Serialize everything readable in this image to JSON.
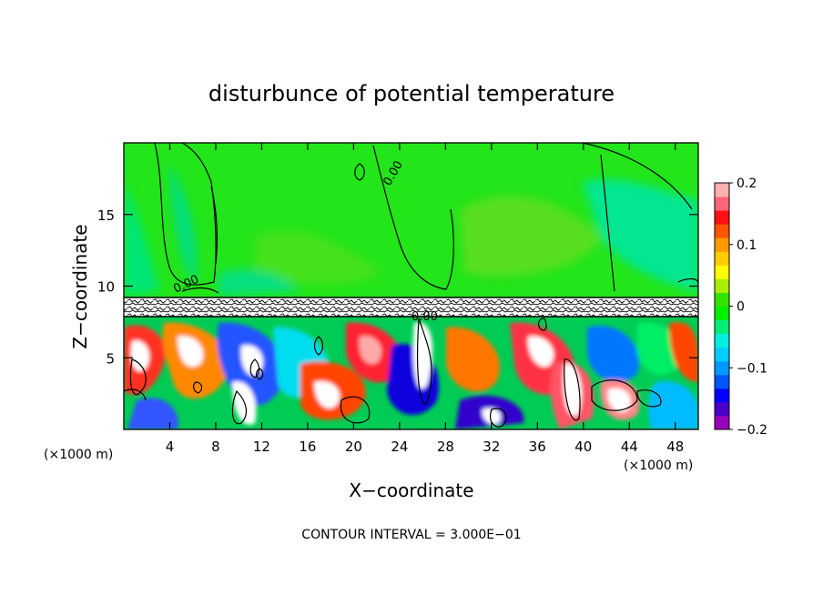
{
  "chart_data": {
    "type": "heatmap",
    "title": "disturbunce of potential temperature",
    "xlabel": "X−coordinate",
    "ylabel": "Z−coordinate",
    "x_unit_left": "(×1000 m)",
    "x_unit_right": "(×1000 m)",
    "footer": "CONTOUR INTERVAL = 3.000E−01",
    "xlim": [
      0,
      50
    ],
    "ylim": [
      0,
      20
    ],
    "x_ticks": [
      4,
      8,
      12,
      16,
      20,
      24,
      28,
      32,
      36,
      40,
      44,
      48
    ],
    "y_ticks": [
      5,
      10,
      15
    ],
    "contour_labels": [
      "0.00",
      "0.00",
      "0.00"
    ],
    "colorbar": {
      "min": -0.2,
      "max": 0.2,
      "tick_values": [
        0.2,
        0.1,
        0,
        -0.1,
        -0.2
      ],
      "tick_labels": [
        "0.2",
        "0.1",
        "0",
        "−0.1",
        "−0.2"
      ],
      "colors": [
        "#9900bb",
        "#4b00c8",
        "#0000ff",
        "#0055ff",
        "#0099ff",
        "#00ccff",
        "#00eedd",
        "#00ee77",
        "#00ee00",
        "#33e300",
        "#aaee00",
        "#ffff00",
        "#ffcc00",
        "#ff9900",
        "#ff5500",
        "#ff1111",
        "#ff6677",
        "#ffb0b0"
      ]
    },
    "regions": {
      "upper_field_value": 0.0,
      "upper_field_range_z": [
        9.3,
        20
      ],
      "noisy_band_range_z": [
        7.8,
        9.3
      ],
      "lower_field_range_z": [
        0,
        7.8
      ]
    }
  }
}
